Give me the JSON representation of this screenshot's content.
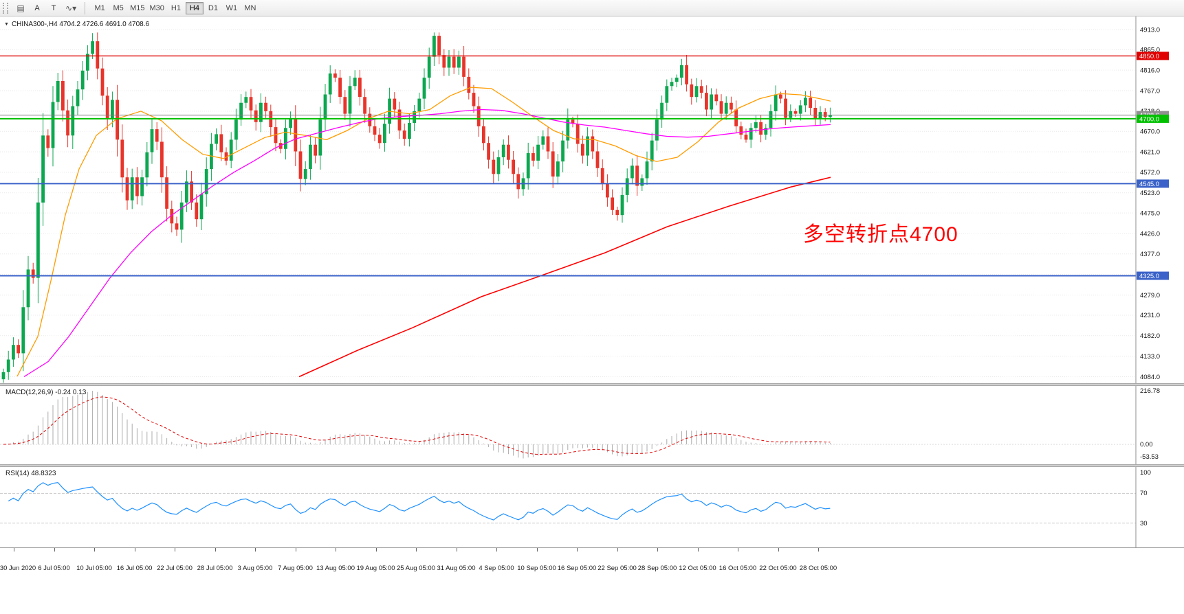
{
  "toolbar": {
    "icon_list": "▤",
    "icon_a": "A",
    "icon_t": "T",
    "icon_wave": "∿",
    "caret": "▾",
    "timeframes": [
      "M1",
      "M5",
      "M15",
      "M30",
      "H1",
      "H4",
      "D1",
      "W1",
      "MN"
    ],
    "active_timeframe": "H4"
  },
  "main_chart": {
    "dropdown_glyph": "▼",
    "symbol_line": "CHINA300-,H4  4704.2 4726.6 4691.0 4708.6",
    "annotation": {
      "text": "多空转折点4700",
      "color": "#ff0000"
    },
    "y_axis_labels": [
      "4913.0",
      "4865.0",
      "4816.0",
      "4767.0",
      "4718.0",
      "4670.0",
      "4621.0",
      "4572.0",
      "4523.0",
      "4475.0",
      "4426.0",
      "4377.0",
      "4328.0",
      "4279.0",
      "4231.0",
      "4182.0",
      "4133.0",
      "4084.0"
    ]
  },
  "macd_panel": {
    "label": "MACD(12,26,9) -0.24 0.13",
    "axis_labels": [
      "216.78",
      "0.00",
      "-53.53"
    ]
  },
  "rsi_panel": {
    "label": "RSI(14) 48.8323",
    "axis_labels": [
      "100",
      "70",
      "30"
    ]
  },
  "chart_data": {
    "type": "candlestick",
    "symbol": "CHINA300-",
    "period": "H4",
    "last_quote": {
      "open": 4704.2,
      "high": 4726.6,
      "low": 4691.0,
      "close": 4708.6
    },
    "y_range": [
      4084.0,
      4913.0
    ],
    "bull_color": "#0ca750",
    "bear_color": "#e8342a",
    "first_open": 4078,
    "closes": [
      4095,
      4125,
      4160,
      4140,
      4250,
      4340,
      4320,
      4500,
      4660,
      4630,
      4740,
      4790,
      4720,
      4660,
      4730,
      4770,
      4815,
      4855,
      4885,
      4820,
      4755,
      4700,
      4745,
      4650,
      4560,
      4505,
      4560,
      4515,
      4560,
      4620,
      4675,
      4645,
      4560,
      4485,
      4450,
      4435,
      4500,
      4550,
      4500,
      4460,
      4520,
      4580,
      4640,
      4663,
      4620,
      4600,
      4650,
      4698,
      4738,
      4752,
      4720,
      4692,
      4738,
      4718,
      4680,
      4642,
      4628,
      4678,
      4700,
      4622,
      4556,
      4580,
      4638,
      4612,
      4698,
      4758,
      4808,
      4798,
      4752,
      4712,
      4778,
      4798,
      4752,
      4712,
      4682,
      4662,
      4642,
      4688,
      4748,
      4722,
      4672,
      4652,
      4690,
      4718,
      4748,
      4798,
      4848,
      4898,
      4852,
      4822,
      4848,
      4822,
      4848,
      4800,
      4762,
      4730,
      4682,
      4642,
      4602,
      4568,
      4608,
      4638,
      4602,
      4568,
      4532,
      4558,
      4618,
      4600,
      4638,
      4658,
      4622,
      4562,
      4598,
      4648,
      4698,
      4688,
      4640,
      4612,
      4658,
      4622,
      4582,
      4546,
      4512,
      4482,
      4470,
      4518,
      4558,
      4588,
      4540,
      4558,
      4598,
      4648,
      4698,
      4738,
      4778,
      4788,
      4798,
      4828,
      4782,
      4752,
      4778,
      4762,
      4722,
      4758,
      4742,
      4712,
      4738,
      4722,
      4682,
      4662,
      4650,
      4678,
      4692,
      4662,
      4678,
      4718,
      4758,
      4748,
      4702,
      4718,
      4712,
      4732,
      4750,
      4726,
      4700,
      4716,
      4704.2,
      4708.6
    ],
    "horizontal_levels": [
      {
        "price": 4850.0,
        "label": "4850.0",
        "color": "#e00000",
        "width": 1.4
      },
      {
        "price": 4700.0,
        "label": "4700.0",
        "color": "#00c000",
        "width": 2
      },
      {
        "price": 4545.0,
        "label": "4545.0",
        "color": "#3a62c8",
        "width": 2
      },
      {
        "price": 4325.0,
        "label": "4325.0",
        "color": "#3a62c8",
        "width": 2
      }
    ],
    "bid_line": {
      "price": 4708.6,
      "label": "4708.6",
      "color": "#909090"
    },
    "moving_averages": [
      {
        "name": "ma-fast",
        "color": "#ff9c00",
        "width": 1.3,
        "anchors": [
          [
            25,
            4085
          ],
          [
            55,
            4180
          ],
          [
            75,
            4320
          ],
          [
            95,
            4470
          ],
          [
            115,
            4580
          ],
          [
            140,
            4660
          ],
          [
            170,
            4700
          ],
          [
            205,
            4718
          ],
          [
            235,
            4695
          ],
          [
            265,
            4650
          ],
          [
            295,
            4615
          ],
          [
            325,
            4605
          ],
          [
            355,
            4630
          ],
          [
            385,
            4655
          ],
          [
            415,
            4668
          ],
          [
            445,
            4660
          ],
          [
            475,
            4650
          ],
          [
            505,
            4672
          ],
          [
            535,
            4700
          ],
          [
            565,
            4718
          ],
          [
            595,
            4712
          ],
          [
            625,
            4722
          ],
          [
            655,
            4755
          ],
          [
            685,
            4775
          ],
          [
            715,
            4772
          ],
          [
            745,
            4740
          ],
          [
            775,
            4705
          ],
          [
            805,
            4672
          ],
          [
            835,
            4652
          ],
          [
            865,
            4650
          ],
          [
            895,
            4635
          ],
          [
            925,
            4612
          ],
          [
            955,
            4598
          ],
          [
            985,
            4608
          ],
          [
            1015,
            4645
          ],
          [
            1045,
            4692
          ],
          [
            1075,
            4726
          ],
          [
            1105,
            4748
          ],
          [
            1135,
            4760
          ],
          [
            1165,
            4757
          ],
          [
            1195,
            4747
          ],
          [
            1208,
            4742
          ]
        ]
      },
      {
        "name": "ma-medium",
        "color": "#ff00ff",
        "width": 1.3,
        "anchors": [
          [
            35,
            4084
          ],
          [
            70,
            4120
          ],
          [
            100,
            4180
          ],
          [
            130,
            4250
          ],
          [
            160,
            4320
          ],
          [
            190,
            4380
          ],
          [
            220,
            4430
          ],
          [
            250,
            4470
          ],
          [
            280,
            4505
          ],
          [
            310,
            4540
          ],
          [
            340,
            4572
          ],
          [
            370,
            4600
          ],
          [
            400,
            4630
          ],
          [
            430,
            4652
          ],
          [
            460,
            4665
          ],
          [
            490,
            4678
          ],
          [
            520,
            4690
          ],
          [
            550,
            4700
          ],
          [
            580,
            4705
          ],
          [
            610,
            4708
          ],
          [
            640,
            4712
          ],
          [
            670,
            4718
          ],
          [
            700,
            4722
          ],
          [
            730,
            4720
          ],
          [
            760,
            4712
          ],
          [
            790,
            4702
          ],
          [
            820,
            4692
          ],
          [
            850,
            4685
          ],
          [
            880,
            4680
          ],
          [
            910,
            4672
          ],
          [
            940,
            4664
          ],
          [
            970,
            4658
          ],
          [
            1000,
            4656
          ],
          [
            1030,
            4658
          ],
          [
            1060,
            4664
          ],
          [
            1090,
            4670
          ],
          [
            1120,
            4676
          ],
          [
            1150,
            4680
          ],
          [
            1180,
            4683
          ],
          [
            1208,
            4686
          ]
        ]
      },
      {
        "name": "ma-slow",
        "color": "#ff0000",
        "width": 1.6,
        "anchors": [
          [
            435,
            4084
          ],
          [
            520,
            4147
          ],
          [
            600,
            4201
          ],
          [
            700,
            4275
          ],
          [
            790,
            4327
          ],
          [
            880,
            4380
          ],
          [
            970,
            4442
          ],
          [
            1060,
            4491
          ],
          [
            1150,
            4537
          ],
          [
            1208,
            4560
          ]
        ]
      }
    ],
    "indicators": {
      "macd": {
        "params": [
          12,
          26,
          9
        ],
        "value": -0.24,
        "signal_value": 0.13
      },
      "rsi": {
        "params": [
          14
        ],
        "value": 48.8323,
        "levels": [
          70,
          30
        ]
      }
    },
    "time_labels": [
      "30 Jun 2020",
      "6 Jul 05:00",
      "10 Jul 05:00",
      "16 Jul 05:00",
      "22 Jul 05:00",
      "28 Jul 05:00",
      "3 Aug 05:00",
      "7 Aug 05:00",
      "13 Aug 05:00",
      "19 Aug 05:00",
      "25 Aug 05:00",
      "31 Aug 05:00",
      "4 Sep 05:00",
      "10 Sep 05:00",
      "16 Sep 05:00",
      "22 Sep 05:00",
      "28 Sep 05:00",
      "12 Oct 05:00",
      "16 Oct 05:00",
      "22 Oct 05:00",
      "28 Oct 05:00"
    ]
  }
}
